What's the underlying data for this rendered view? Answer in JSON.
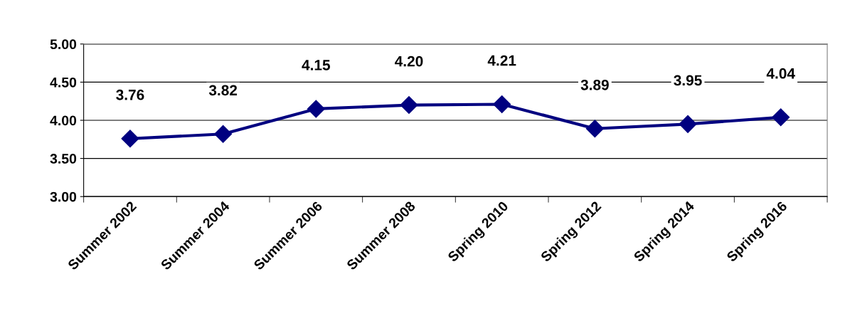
{
  "chart_data": {
    "type": "line",
    "categories": [
      "Summer 2002",
      "Summer 2004",
      "Summer 2006",
      "Summer 2008",
      "Spring 2010",
      "Spring 2012",
      "Spring 2014",
      "Spring 2016"
    ],
    "series": [
      {
        "color": "#000080",
        "values": [
          3.76,
          3.82,
          4.15,
          4.2,
          4.21,
          3.89,
          3.95,
          4.04
        ]
      }
    ],
    "value_labels": [
      "3.76",
      "3.82",
      "4.15",
      "4.20",
      "4.21",
      "3.89",
      "3.95",
      "4.04"
    ],
    "ylim": [
      3.0,
      5.0
    ],
    "yticks": [
      {
        "value": 3.0,
        "label": "3.00"
      },
      {
        "value": 3.5,
        "label": "3.50"
      },
      {
        "value": 4.0,
        "label": "4.00"
      },
      {
        "value": 4.5,
        "label": "4.50"
      },
      {
        "value": 5.0,
        "label": "5.00"
      }
    ],
    "grid": "y",
    "legend": false,
    "marker": "diamond",
    "line_style": "solid"
  }
}
